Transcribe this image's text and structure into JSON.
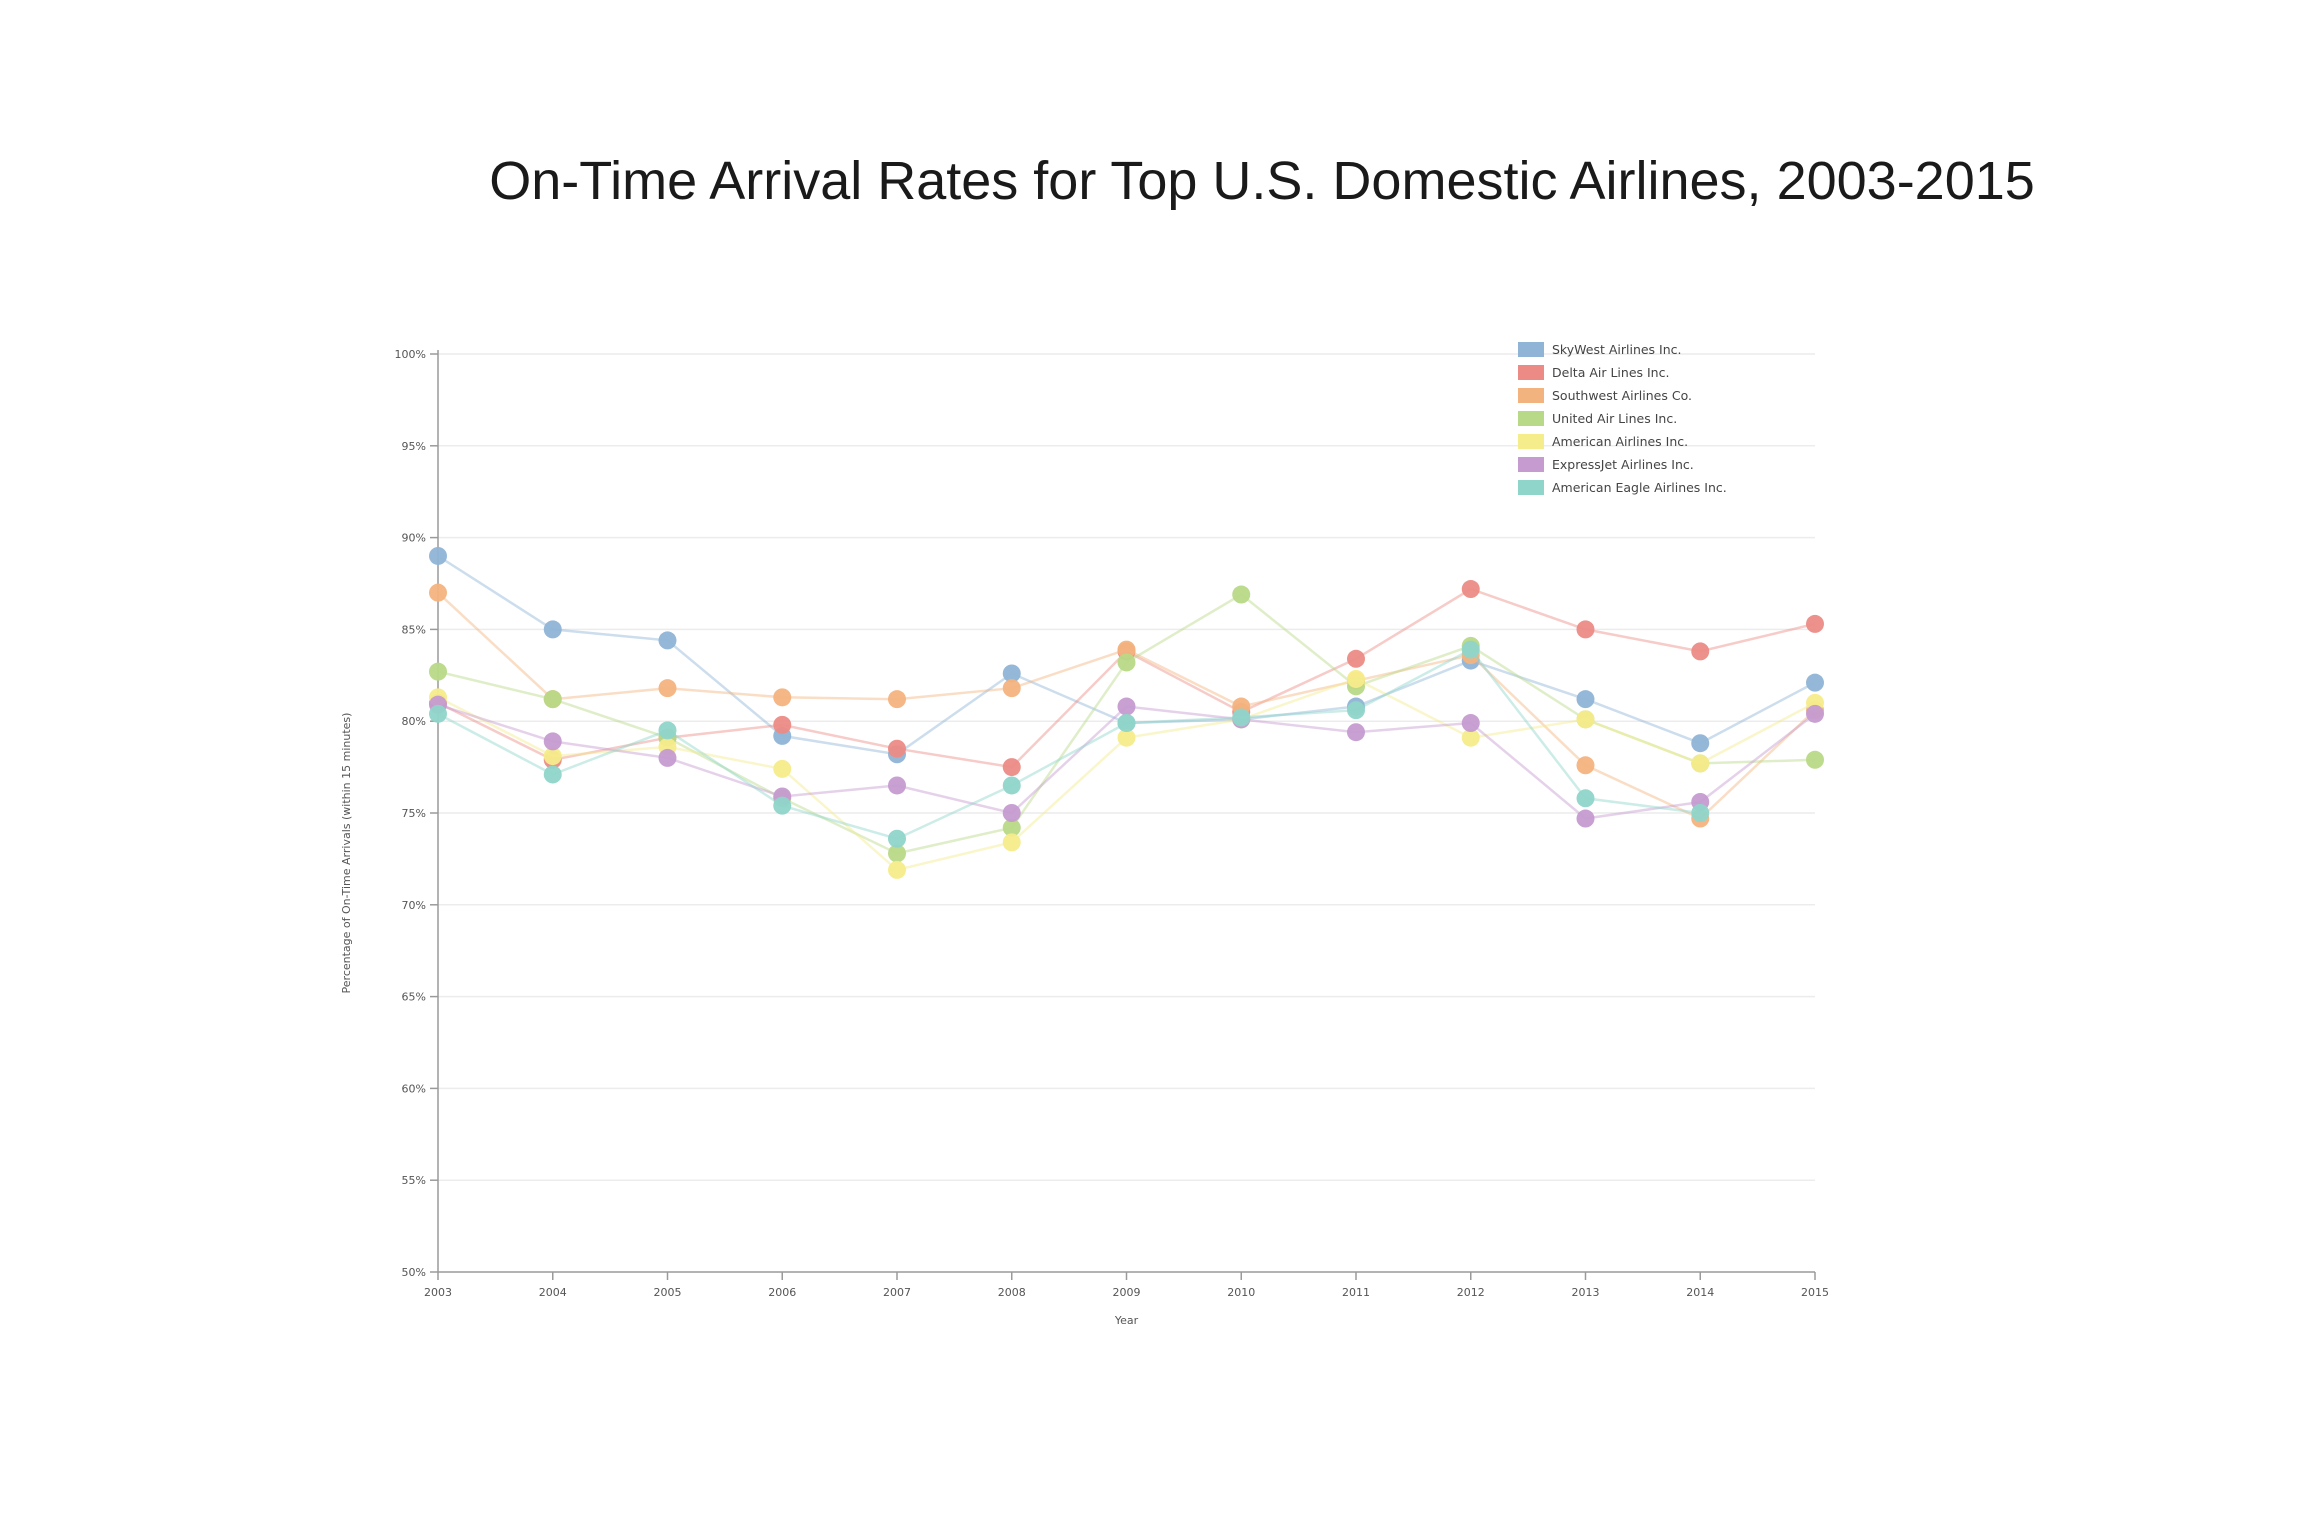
{
  "chart_data": {
    "type": "line",
    "title": "On-Time Arrival Rates for Top U.S. Domestic Airlines, 2003-2015",
    "xlabel": "Year",
    "ylabel": "Percentage of On-Time Arrivals (within 15 minutes)",
    "x": [
      2003,
      2004,
      2005,
      2006,
      2007,
      2008,
      2009,
      2010,
      2011,
      2012,
      2013,
      2014,
      2015
    ],
    "x_tick_labels": [
      "2003",
      "2004",
      "2005",
      "2006",
      "2007",
      "2008",
      "2009",
      "2010",
      "2011",
      "2012",
      "2013",
      "2014",
      "2015"
    ],
    "ylim": [
      50,
      100
    ],
    "y_ticks": [
      50,
      55,
      60,
      65,
      70,
      75,
      80,
      85,
      90,
      95,
      100
    ],
    "y_tick_labels": [
      "50%",
      "55%",
      "60%",
      "65%",
      "70%",
      "75%",
      "80%",
      "85%",
      "90%",
      "95%",
      "100%"
    ],
    "grid": true,
    "legend_position": "top-right",
    "series": [
      {
        "name": "SkyWest Airlines Inc.",
        "color": "#8fb4d6",
        "values": [
          89.0,
          85.0,
          84.4,
          79.2,
          78.2,
          82.6,
          79.9,
          80.1,
          80.8,
          83.3,
          81.2,
          78.8,
          82.1
        ]
      },
      {
        "name": "Delta Air Lines Inc.",
        "color": "#ec8b86",
        "values": [
          81.0,
          77.9,
          79.1,
          79.8,
          78.5,
          77.5,
          83.8,
          80.5,
          83.4,
          87.2,
          85.0,
          83.8,
          85.3
        ]
      },
      {
        "name": "Southwest Airlines Co.",
        "color": "#f3b37e",
        "values": [
          87.0,
          81.2,
          81.8,
          81.3,
          81.2,
          81.8,
          83.9,
          80.8,
          82.2,
          83.6,
          77.6,
          74.7,
          80.6
        ]
      },
      {
        "name": "United Air Lines Inc.",
        "color": "#b8d987",
        "values": [
          82.7,
          81.2,
          79.1,
          75.8,
          72.8,
          74.2,
          83.2,
          86.9,
          81.9,
          84.1,
          80.1,
          77.7,
          77.9
        ]
      },
      {
        "name": "American Airlines Inc.",
        "color": "#f5ec8b",
        "values": [
          81.3,
          78.1,
          78.6,
          77.4,
          71.9,
          73.4,
          79.1,
          80.1,
          82.3,
          79.1,
          80.1,
          77.7,
          81.0
        ]
      },
      {
        "name": "ExpressJet Airlines Inc.",
        "color": "#c59bd0",
        "values": [
          80.9,
          78.9,
          78.0,
          75.9,
          76.5,
          75.0,
          80.8,
          80.1,
          79.4,
          79.9,
          74.7,
          75.6,
          80.4
        ]
      },
      {
        "name": "American Eagle Airlines Inc.",
        "color": "#8fd5c9",
        "values": [
          80.4,
          77.1,
          79.5,
          75.4,
          73.6,
          76.5,
          79.9,
          80.2,
          80.6,
          83.9,
          75.8,
          75.0,
          null
        ]
      }
    ]
  }
}
